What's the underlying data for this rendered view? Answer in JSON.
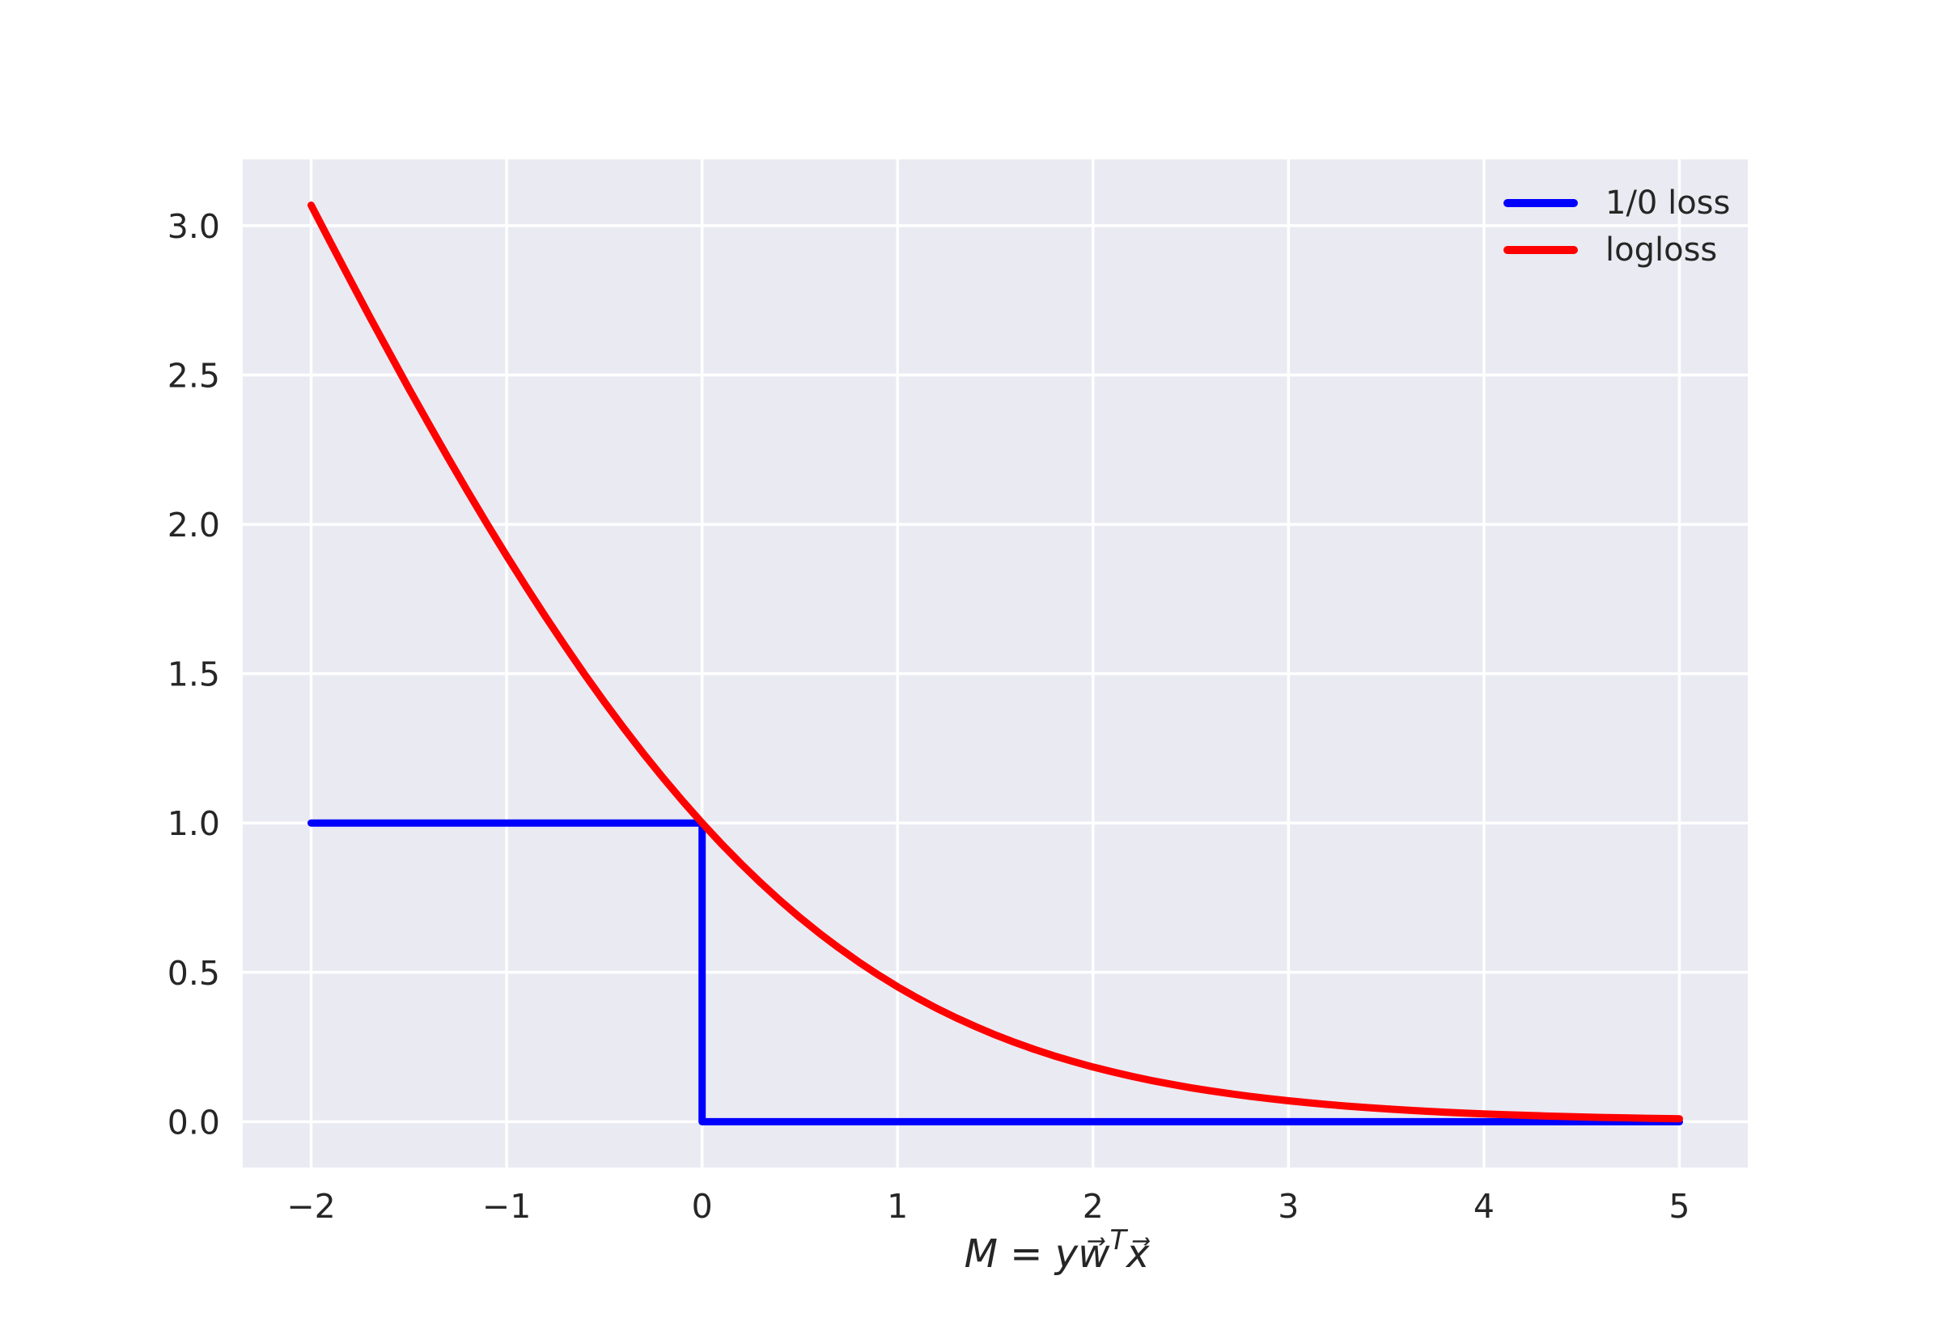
{
  "figure": {
    "background": "#ffffff",
    "axes_background": "#eaeaf2",
    "grid_color": "#ffffff",
    "text_color": "#262626"
  },
  "chart_data": {
    "type": "line",
    "xlabel_text": "M = yw⃗ᵀx⃗",
    "xlabel_parts": {
      "lhs": "M",
      "eq": " = ",
      "coef": "yw⃗",
      "sup": "T",
      "rhs": "x⃗"
    },
    "xlim": [
      -2.35,
      5.35
    ],
    "ylim": [
      -0.1534,
      3.2219
    ],
    "grid": "on",
    "x_ticks": [
      -2,
      -1,
      0,
      1,
      2,
      3,
      4,
      5
    ],
    "x_tick_labels": [
      "−2",
      "−1",
      "0",
      "1",
      "2",
      "3",
      "4",
      "5"
    ],
    "y_ticks": [
      0.0,
      0.5,
      1.0,
      1.5,
      2.0,
      2.5,
      3.0
    ],
    "y_tick_labels": [
      "0.0",
      "0.5",
      "1.0",
      "1.5",
      "2.0",
      "2.5",
      "3.0"
    ],
    "legend": {
      "position": "upper right",
      "entries": [
        {
          "label": "1/0 loss",
          "color": "#0000ff"
        },
        {
          "label": "logloss",
          "color": "#ff0000"
        }
      ]
    },
    "series": [
      {
        "name": "1/0 loss",
        "color": "#0000ff",
        "points": [
          [
            -2,
            1
          ],
          [
            0,
            1
          ],
          [
            0,
            0
          ],
          [
            5,
            0
          ]
        ]
      },
      {
        "name": "logloss",
        "color": "#ff0000",
        "points": [
          [
            -2.0,
            3.0685
          ],
          [
            -1.9,
            2.9424
          ],
          [
            -1.8,
            2.8177
          ],
          [
            -1.7,
            2.6945
          ],
          [
            -1.6,
            2.5738
          ],
          [
            -1.5,
            2.4546
          ],
          [
            -1.4,
            2.3381
          ],
          [
            -1.3,
            2.2234
          ],
          [
            -1.2,
            2.1111
          ],
          [
            -1.1,
            2.0015
          ],
          [
            -1.0,
            1.8946
          ],
          [
            -0.9,
            1.7906
          ],
          [
            -0.8,
            1.6897
          ],
          [
            -0.7,
            1.5916
          ],
          [
            -0.6,
            1.4968
          ],
          [
            -0.5,
            1.4053
          ],
          [
            -0.4,
            1.3172
          ],
          [
            -0.3,
            1.2326
          ],
          [
            -0.2,
            1.1515
          ],
          [
            -0.1,
            1.0739
          ],
          [
            0.0,
            1.0
          ],
          [
            0.1,
            0.9297
          ],
          [
            0.2,
            0.8629
          ],
          [
            0.3,
            0.7998
          ],
          [
            0.4,
            0.7401
          ],
          [
            0.5,
            0.684
          ],
          [
            0.6,
            0.6312
          ],
          [
            0.7,
            0.5817
          ],
          [
            0.8,
            0.5355
          ],
          [
            0.9,
            0.4922
          ],
          [
            1.0,
            0.4519
          ],
          [
            1.1,
            0.4145
          ],
          [
            1.2,
            0.3798
          ],
          [
            1.3,
            0.3478
          ],
          [
            1.4,
            0.3183
          ],
          [
            1.5,
            0.2906
          ],
          [
            1.6,
            0.2655
          ],
          [
            1.7,
            0.242
          ],
          [
            1.8,
            0.2208
          ],
          [
            1.9,
            0.2012
          ],
          [
            2.0,
            0.1831
          ],
          [
            2.1,
            0.1667
          ],
          [
            2.2,
            0.1516
          ],
          [
            2.3,
            0.1378
          ],
          [
            2.4,
            0.1253
          ],
          [
            2.5,
            0.1138
          ],
          [
            2.6,
            0.1034
          ],
          [
            2.7,
            0.0938
          ],
          [
            2.8,
            0.0852
          ],
          [
            2.9,
            0.0773
          ],
          [
            3.0,
            0.0701
          ],
          [
            3.1,
            0.0636
          ],
          [
            3.2,
            0.0576
          ],
          [
            3.3,
            0.0523
          ],
          [
            3.4,
            0.0474
          ],
          [
            3.5,
            0.0429
          ],
          [
            3.6,
            0.0389
          ],
          [
            3.7,
            0.0352
          ],
          [
            3.8,
            0.0319
          ],
          [
            3.9,
            0.0289
          ],
          [
            4.0,
            0.0262
          ],
          [
            4.1,
            0.0237
          ],
          [
            4.2,
            0.0215
          ],
          [
            4.3,
            0.0194
          ],
          [
            4.4,
            0.0176
          ],
          [
            4.5,
            0.0159
          ],
          [
            4.6,
            0.0144
          ],
          [
            4.7,
            0.0131
          ],
          [
            4.8,
            0.0118
          ],
          [
            4.9,
            0.0107
          ],
          [
            5.0,
            0.0097
          ]
        ]
      }
    ]
  }
}
